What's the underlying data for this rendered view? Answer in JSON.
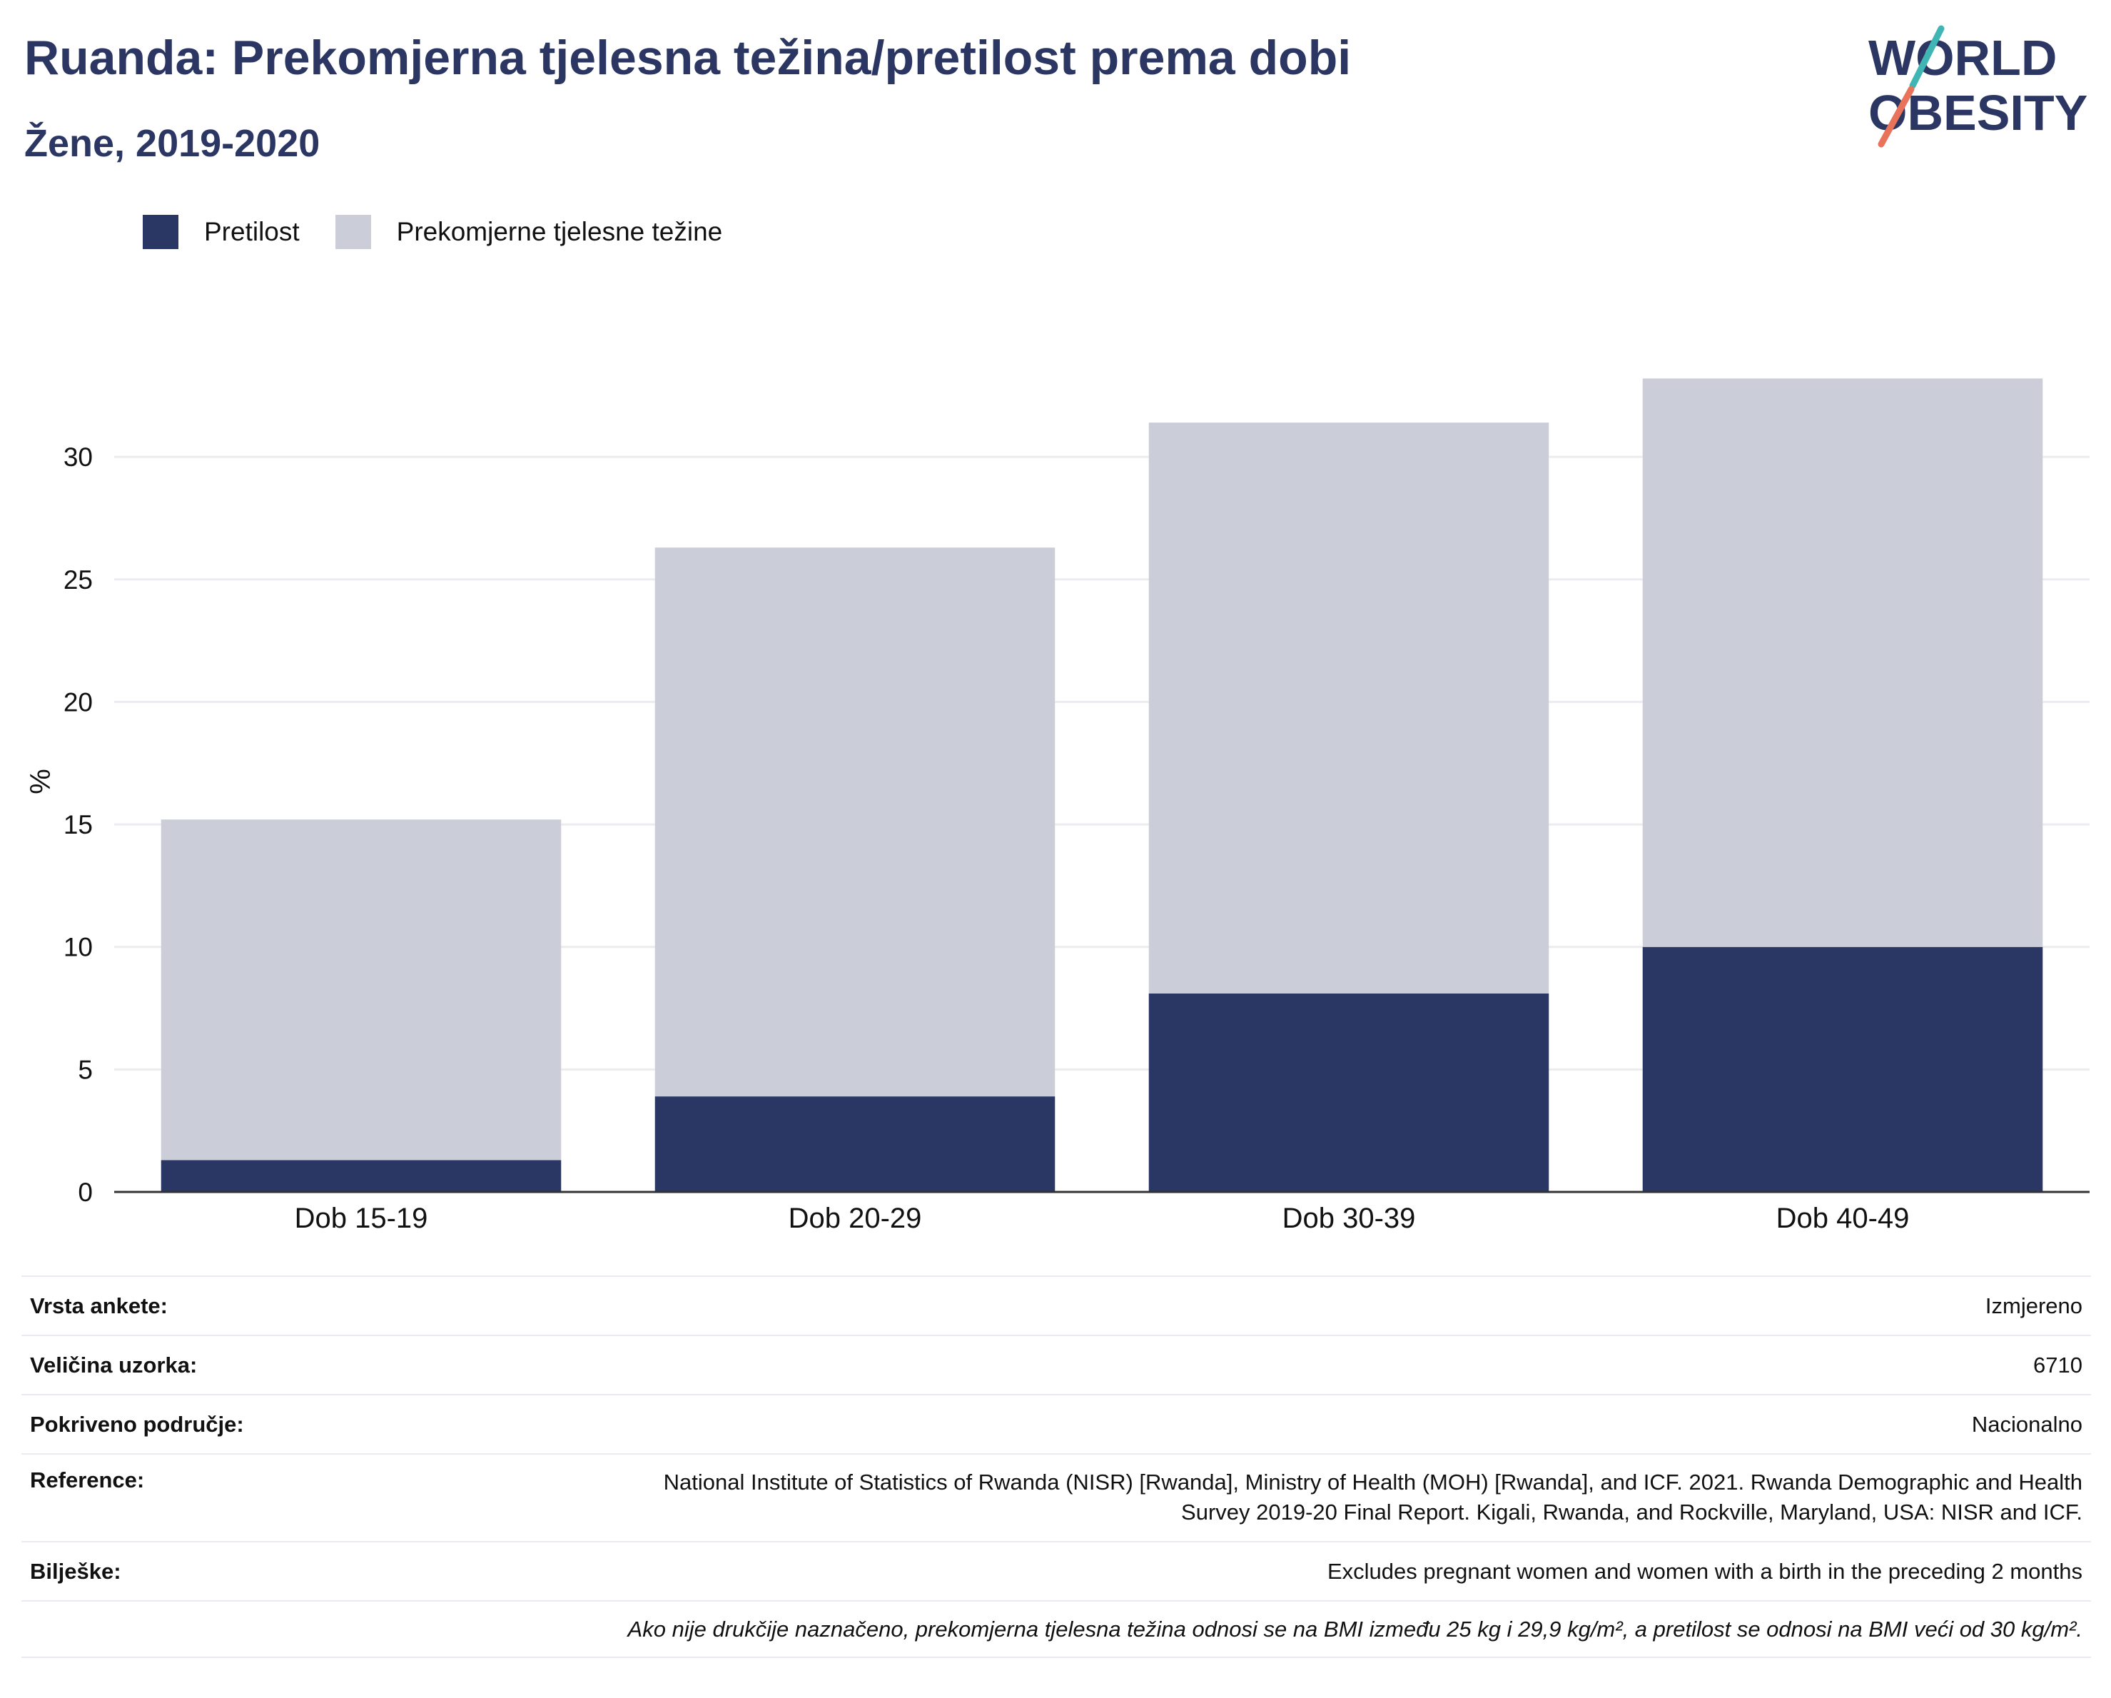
{
  "header": {
    "title": "Ruanda: Prekomjerna tjelesna težina/pretilost prema dobi",
    "subtitle": "Žene, 2019-2020"
  },
  "logo": {
    "line1": "WORLD",
    "line2": "OBESITY"
  },
  "colors": {
    "obesity": "#2a3664",
    "overweight": "#cbcdd8",
    "text": "#2b3663",
    "grid": "#ececf0"
  },
  "chart_data": {
    "type": "bar",
    "stacked": true,
    "categories": [
      "Dob 15-19",
      "Dob 20-29",
      "Dob 30-39",
      "Dob 40-49"
    ],
    "series": [
      {
        "name": "Pretilost",
        "values": [
          1.3,
          3.9,
          8.1,
          10.0
        ]
      },
      {
        "name": "Prekomjerne tjelesne težine",
        "values": [
          13.9,
          22.4,
          23.3,
          23.2
        ]
      }
    ],
    "ylabel": "%",
    "ylim": [
      0,
      33.5
    ],
    "yticks": [
      0,
      5,
      10,
      15,
      20,
      25,
      30
    ],
    "grid": true,
    "legend_position": "top-left"
  },
  "info": [
    {
      "label": "Vrsta ankete:",
      "value": "Izmjereno"
    },
    {
      "label": "Veličina uzorka:",
      "value": "6710"
    },
    {
      "label": "Pokriveno područje:",
      "value": "Nacionalno"
    },
    {
      "label": "Reference:",
      "value": "National Institute of Statistics of Rwanda (NISR) [Rwanda], Ministry of Health (MOH) [Rwanda], and ICF. 2021. Rwanda Demographic and Health Survey 2019-20 Final Report. Kigali, Rwanda, and Rockville, Maryland, USA: NISR and ICF."
    },
    {
      "label": "Bilješke:",
      "value": "Excludes pregnant women and women with a birth in the preceding 2 months"
    }
  ],
  "footnote": "Ako nije drukčije naznačeno, prekomjerna tjelesna težina odnosi se na BMI između 25 kg i 29,9 kg/m², a pretilost se odnosi na BMI veći od 30 kg/m²."
}
